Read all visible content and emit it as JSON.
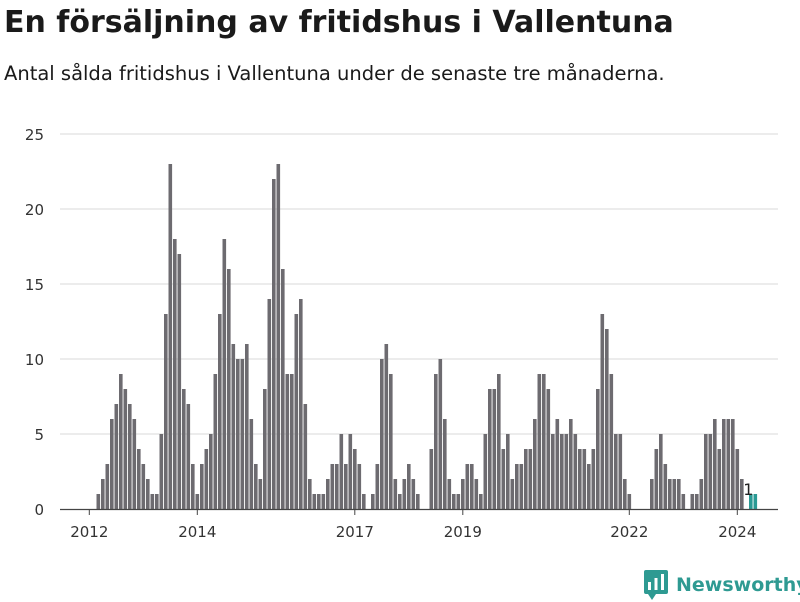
{
  "title": "En försäljning av fritidshus i Vallentuna",
  "subtitle": "Antal sålda fritidshus i Vallentuna under de senaste tre månaderna.",
  "brand": {
    "name": "Newsworthy",
    "icon": "newsworthy-logo-icon",
    "color": "#2e9a92"
  },
  "colors": {
    "bar": "#6d6b70",
    "highlight": "#2b9a94",
    "grid": "#d9d9d9"
  },
  "chart_data": {
    "type": "bar",
    "title": "En försäljning av fritidshus i Vallentuna",
    "subtitle": "Antal sålda fritidshus i Vallentuna under de senaste tre månaderna.",
    "xlabel": "",
    "ylabel": "",
    "ylim": [
      0,
      25
    ],
    "yticks": [
      0,
      5,
      10,
      15,
      20,
      25
    ],
    "grid": true,
    "x_ticks": [
      {
        "label": "2012",
        "index": 6
      },
      {
        "label": "2014",
        "index": 30
      },
      {
        "label": "2017",
        "index": 65
      },
      {
        "label": "2019",
        "index": 89
      },
      {
        "label": "2022",
        "index": 126
      },
      {
        "label": "2024",
        "index": 150
      }
    ],
    "values": [
      0,
      0,
      0,
      0,
      0,
      0,
      0,
      0,
      1,
      2,
      3,
      6,
      7,
      9,
      8,
      7,
      6,
      4,
      3,
      2,
      1,
      1,
      5,
      13,
      23,
      18,
      17,
      8,
      7,
      3,
      1,
      3,
      4,
      5,
      9,
      13,
      18,
      16,
      11,
      10,
      10,
      11,
      6,
      3,
      2,
      8,
      14,
      22,
      23,
      16,
      9,
      9,
      13,
      14,
      7,
      2,
      1,
      1,
      1,
      2,
      3,
      3,
      5,
      3,
      5,
      4,
      3,
      1,
      0,
      1,
      3,
      10,
      11,
      9,
      2,
      1,
      2,
      3,
      2,
      1,
      0,
      0,
      4,
      9,
      10,
      6,
      2,
      1,
      1,
      2,
      3,
      3,
      2,
      1,
      5,
      8,
      8,
      9,
      4,
      5,
      2,
      3,
      3,
      4,
      4,
      6,
      9,
      9,
      8,
      5,
      6,
      5,
      5,
      6,
      5,
      4,
      4,
      3,
      4,
      8,
      13,
      12,
      9,
      5,
      5,
      2,
      1,
      0,
      0,
      0,
      0,
      2,
      4,
      5,
      3,
      2,
      2,
      2,
      1,
      0,
      1,
      1,
      2,
      5,
      5,
      6,
      4,
      6,
      6,
      6,
      4,
      2,
      0,
      1,
      1
    ],
    "highlight_last": 2,
    "annotation": {
      "text": "1",
      "index": 152
    }
  }
}
